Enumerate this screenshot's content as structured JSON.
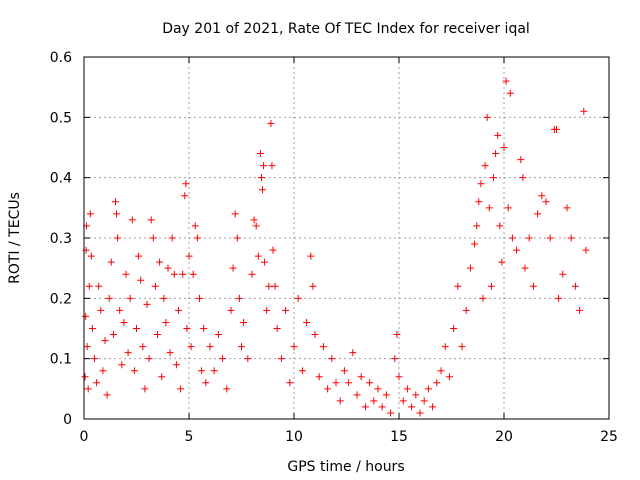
{
  "chart_data": {
    "type": "scatter",
    "title": "Day 201 of 2021, Rate Of TEC Index for receiver iqal",
    "xlabel": "GPS time / hours",
    "ylabel": "ROTI / TECUs",
    "xlim": [
      0,
      25
    ],
    "ylim": [
      0,
      0.6
    ],
    "xticks": [
      "0",
      "5",
      "10",
      "15",
      "20",
      "25"
    ],
    "yticks": [
      "0",
      "0.1",
      "0.2",
      "0.3",
      "0.4",
      "0.5",
      "0.6"
    ],
    "grid": true,
    "marker": "+",
    "marker_color": "#ff0000",
    "series": [
      {
        "points": [
          [
            0.05,
            0.07
          ],
          [
            0.08,
            0.17
          ],
          [
            0.1,
            0.28
          ],
          [
            0.12,
            0.32
          ],
          [
            0.15,
            0.12
          ],
          [
            0.2,
            0.05
          ],
          [
            0.25,
            0.22
          ],
          [
            0.3,
            0.34
          ],
          [
            0.35,
            0.27
          ],
          [
            0.4,
            0.15
          ],
          [
            0.5,
            0.1
          ],
          [
            0.6,
            0.06
          ],
          [
            0.7,
            0.22
          ],
          [
            0.8,
            0.18
          ],
          [
            0.9,
            0.08
          ],
          [
            1.0,
            0.13
          ],
          [
            1.1,
            0.04
          ],
          [
            1.2,
            0.2
          ],
          [
            1.3,
            0.26
          ],
          [
            1.4,
            0.14
          ],
          [
            1.5,
            0.36
          ],
          [
            1.55,
            0.34
          ],
          [
            1.6,
            0.3
          ],
          [
            1.7,
            0.18
          ],
          [
            1.8,
            0.09
          ],
          [
            1.9,
            0.16
          ],
          [
            2.0,
            0.24
          ],
          [
            2.1,
            0.11
          ],
          [
            2.2,
            0.2
          ],
          [
            2.3,
            0.33
          ],
          [
            2.4,
            0.08
          ],
          [
            2.5,
            0.15
          ],
          [
            2.6,
            0.27
          ],
          [
            2.7,
            0.23
          ],
          [
            2.8,
            0.12
          ],
          [
            2.9,
            0.05
          ],
          [
            3.0,
            0.19
          ],
          [
            3.1,
            0.1
          ],
          [
            3.2,
            0.33
          ],
          [
            3.3,
            0.3
          ],
          [
            3.4,
            0.22
          ],
          [
            3.5,
            0.14
          ],
          [
            3.6,
            0.26
          ],
          [
            3.7,
            0.07
          ],
          [
            3.8,
            0.2
          ],
          [
            3.9,
            0.16
          ],
          [
            4.0,
            0.25
          ],
          [
            4.1,
            0.11
          ],
          [
            4.2,
            0.3
          ],
          [
            4.3,
            0.24
          ],
          [
            4.4,
            0.09
          ],
          [
            4.5,
            0.18
          ],
          [
            4.6,
            0.05
          ],
          [
            4.7,
            0.24
          ],
          [
            4.8,
            0.37
          ],
          [
            4.85,
            0.39
          ],
          [
            4.9,
            0.15
          ],
          [
            5.0,
            0.27
          ],
          [
            5.1,
            0.12
          ],
          [
            5.2,
            0.24
          ],
          [
            5.3,
            0.32
          ],
          [
            5.4,
            0.3
          ],
          [
            5.5,
            0.2
          ],
          [
            5.6,
            0.08
          ],
          [
            5.7,
            0.15
          ],
          [
            5.8,
            0.06
          ],
          [
            6.0,
            0.12
          ],
          [
            6.2,
            0.08
          ],
          [
            6.4,
            0.14
          ],
          [
            6.6,
            0.1
          ],
          [
            6.8,
            0.05
          ],
          [
            7.0,
            0.18
          ],
          [
            7.1,
            0.25
          ],
          [
            7.2,
            0.34
          ],
          [
            7.3,
            0.3
          ],
          [
            7.4,
            0.2
          ],
          [
            7.5,
            0.12
          ],
          [
            7.6,
            0.16
          ],
          [
            7.8,
            0.1
          ],
          [
            8.0,
            0.24
          ],
          [
            8.1,
            0.33
          ],
          [
            8.2,
            0.32
          ],
          [
            8.3,
            0.27
          ],
          [
            8.4,
            0.44
          ],
          [
            8.45,
            0.4
          ],
          [
            8.5,
            0.38
          ],
          [
            8.55,
            0.42
          ],
          [
            8.6,
            0.26
          ],
          [
            8.7,
            0.18
          ],
          [
            8.8,
            0.22
          ],
          [
            8.9,
            0.49
          ],
          [
            8.95,
            0.42
          ],
          [
            9.0,
            0.28
          ],
          [
            9.1,
            0.22
          ],
          [
            9.2,
            0.15
          ],
          [
            9.4,
            0.1
          ],
          [
            9.6,
            0.18
          ],
          [
            9.8,
            0.06
          ],
          [
            10.0,
            0.12
          ],
          [
            10.2,
            0.2
          ],
          [
            10.4,
            0.08
          ],
          [
            10.6,
            0.16
          ],
          [
            10.8,
            0.27
          ],
          [
            10.9,
            0.22
          ],
          [
            11.0,
            0.14
          ],
          [
            11.2,
            0.07
          ],
          [
            11.4,
            0.12
          ],
          [
            11.6,
            0.05
          ],
          [
            11.8,
            0.1
          ],
          [
            12.0,
            0.06
          ],
          [
            12.2,
            0.03
          ],
          [
            12.4,
            0.08
          ],
          [
            12.6,
            0.06
          ],
          [
            12.8,
            0.11
          ],
          [
            13.0,
            0.04
          ],
          [
            13.2,
            0.07
          ],
          [
            13.4,
            0.02
          ],
          [
            13.6,
            0.06
          ],
          [
            13.8,
            0.03
          ],
          [
            14.0,
            0.05
          ],
          [
            14.2,
            0.02
          ],
          [
            14.4,
            0.04
          ],
          [
            14.6,
            0.01
          ],
          [
            14.8,
            0.1
          ],
          [
            14.9,
            0.14
          ],
          [
            15.0,
            0.07
          ],
          [
            15.2,
            0.03
          ],
          [
            15.4,
            0.05
          ],
          [
            15.6,
            0.02
          ],
          [
            15.8,
            0.04
          ],
          [
            16.0,
            0.01
          ],
          [
            16.2,
            0.03
          ],
          [
            16.4,
            0.05
          ],
          [
            16.6,
            0.02
          ],
          [
            16.8,
            0.06
          ],
          [
            17.0,
            0.08
          ],
          [
            17.2,
            0.12
          ],
          [
            17.4,
            0.07
          ],
          [
            17.6,
            0.15
          ],
          [
            17.8,
            0.22
          ],
          [
            18.0,
            0.12
          ],
          [
            18.2,
            0.18
          ],
          [
            18.4,
            0.25
          ],
          [
            18.6,
            0.29
          ],
          [
            18.7,
            0.32
          ],
          [
            18.8,
            0.36
          ],
          [
            18.9,
            0.39
          ],
          [
            19.0,
            0.2
          ],
          [
            19.1,
            0.42
          ],
          [
            19.2,
            0.5
          ],
          [
            19.3,
            0.35
          ],
          [
            19.4,
            0.22
          ],
          [
            19.5,
            0.4
          ],
          [
            19.6,
            0.44
          ],
          [
            19.7,
            0.47
          ],
          [
            19.8,
            0.32
          ],
          [
            19.9,
            0.26
          ],
          [
            20.0,
            0.45
          ],
          [
            20.1,
            0.56
          ],
          [
            20.2,
            0.35
          ],
          [
            20.3,
            0.54
          ],
          [
            20.4,
            0.3
          ],
          [
            20.6,
            0.28
          ],
          [
            20.8,
            0.43
          ],
          [
            20.9,
            0.4
          ],
          [
            21.0,
            0.25
          ],
          [
            21.2,
            0.3
          ],
          [
            21.4,
            0.22
          ],
          [
            21.6,
            0.34
          ],
          [
            21.8,
            0.37
          ],
          [
            22.0,
            0.36
          ],
          [
            22.2,
            0.3
          ],
          [
            22.4,
            0.48
          ],
          [
            22.5,
            0.48
          ],
          [
            22.6,
            0.2
          ],
          [
            22.8,
            0.24
          ],
          [
            23.0,
            0.35
          ],
          [
            23.2,
            0.3
          ],
          [
            23.4,
            0.22
          ],
          [
            23.6,
            0.18
          ],
          [
            23.8,
            0.51
          ],
          [
            23.9,
            0.28
          ]
        ]
      }
    ]
  }
}
